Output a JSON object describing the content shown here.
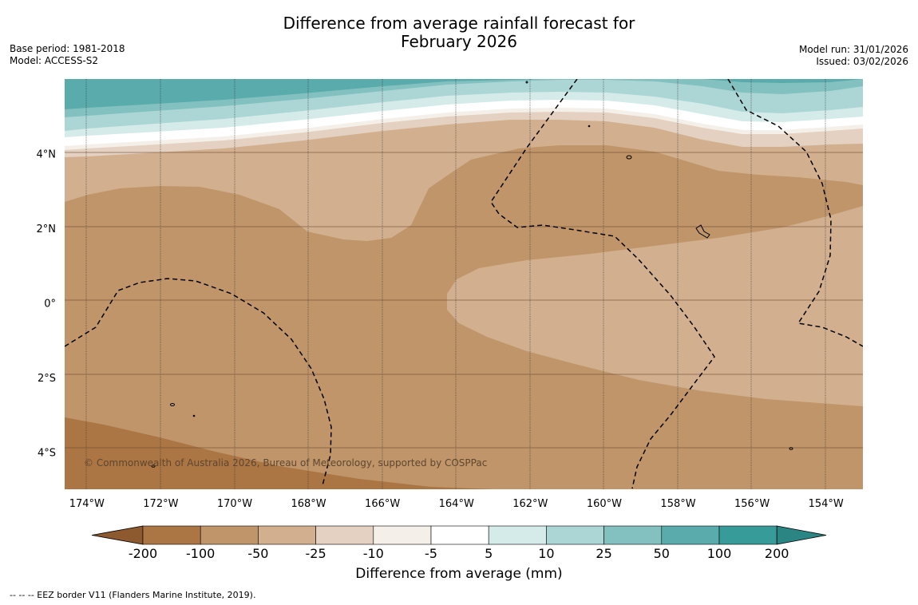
{
  "title": {
    "line1": "Difference from average rainfall forecast for",
    "line2": "February 2026"
  },
  "meta_left": {
    "base_period": "Base period: 1981-2018",
    "model": "Model: ACCESS-S2"
  },
  "meta_right": {
    "model_run": "Model run: 31/01/2026",
    "issued": "Issued: 03/02/2026"
  },
  "map": {
    "lon_range": [
      -174.6,
      -153.0
    ],
    "lat_range": [
      -5.0,
      6.0
    ],
    "lon_ticks": [
      {
        "value": -174,
        "label": "174°W"
      },
      {
        "value": -172,
        "label": "172°W"
      },
      {
        "value": -170,
        "label": "170°W"
      },
      {
        "value": -168,
        "label": "168°W"
      },
      {
        "value": -166,
        "label": "166°W"
      },
      {
        "value": -164,
        "label": "164°W"
      },
      {
        "value": -162,
        "label": "162°W"
      },
      {
        "value": -160,
        "label": "160°W"
      },
      {
        "value": -158,
        "label": "158°W"
      },
      {
        "value": -156,
        "label": "156°W"
      },
      {
        "value": -154,
        "label": "154°W"
      }
    ],
    "lat_ticks": [
      {
        "value": 4,
        "label": "4°N"
      },
      {
        "value": 2,
        "label": "2°N"
      },
      {
        "value": 0,
        "label": "0°"
      },
      {
        "value": -2,
        "label": "2°S"
      },
      {
        "value": -4,
        "label": "4°S"
      }
    ],
    "copyright": "© Commonwealth of Australia 2026, Bureau of Meteorology, supported by COSPPac"
  },
  "colorbar": {
    "title": "Difference from average (mm)",
    "labels": [
      "-200",
      "-100",
      "-50",
      "-25",
      "-10",
      "-5",
      "5",
      "10",
      "25",
      "50",
      "100",
      "200"
    ],
    "colors": [
      "#8c5a2e",
      "#ab7544",
      "#c0956a",
      "#d2b08f",
      "#e4d1c1",
      "#f5efe9",
      "#ffffff",
      "#d5ebe9",
      "#acd6d5",
      "#83c1c0",
      "#5aabab",
      "#379b99",
      "#2a8583"
    ]
  },
  "footnote": "--  --  -- EEZ border V11 (Flanders Marine Institute, 2019)."
}
